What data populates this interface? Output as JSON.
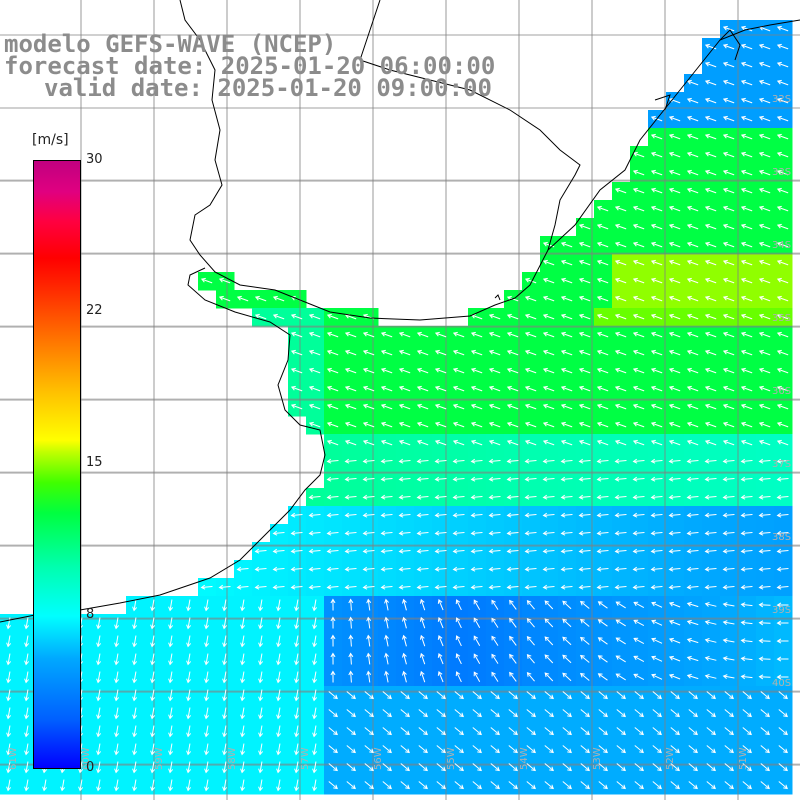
{
  "title": {
    "line1": "modelo GEFS-WAVE (NCEP)",
    "line2": "forecast date: 2025-01-20 06:00:00",
    "line3": "valid date: 2025-01-20 09:00:00"
  },
  "colorbar": {
    "unit": "[m/s]",
    "min": 0,
    "max": 30,
    "ticks": [
      "30",
      "22",
      "15",
      "8",
      "0"
    ],
    "tick_values": [
      30,
      22,
      15,
      8,
      0
    ]
  },
  "grid_labels": {
    "lat_right": [
      "32S",
      "33S",
      "34S",
      "35S",
      "36S",
      "37S",
      "38S",
      "39S",
      "40S"
    ],
    "lon_bottom": [
      "61W",
      "60W",
      "59W",
      "58W",
      "57W",
      "56W",
      "55W",
      "54W",
      "53W",
      "52W",
      "51W"
    ]
  },
  "colors": {
    "land": "#ffffff",
    "grid": "#808080",
    "coast": "#000000",
    "arrow": "#ffffff",
    "title_text": "#8c8c8c"
  }
}
